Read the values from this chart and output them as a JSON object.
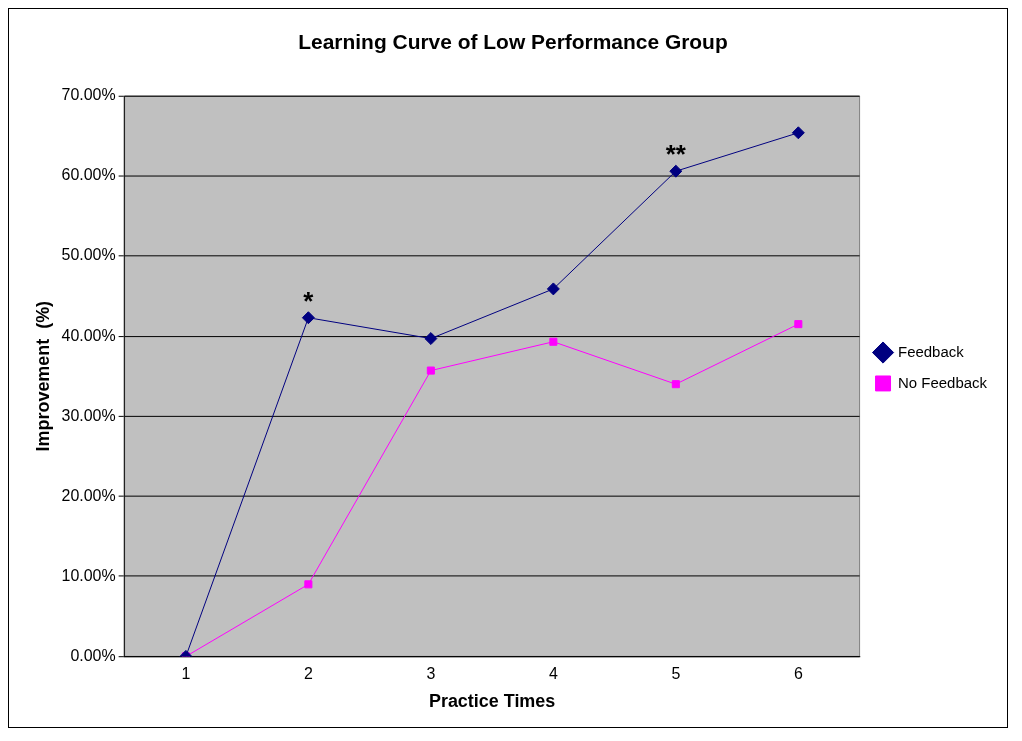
{
  "chart_data": {
    "type": "line",
    "title": "Learning Curve of Low Performance Group",
    "xlabel": "Practice Times",
    "ylabel": "Improvement  (%)",
    "categories": [
      "1",
      "2",
      "3",
      "4",
      "5",
      "6"
    ],
    "series": [
      {
        "name": "Feedback",
        "color": "#000080",
        "marker": "diamond",
        "values": [
          0,
          42.3,
          39.7,
          45.9,
          60.6,
          65.4
        ]
      },
      {
        "name": "No Feedback",
        "color": "#ff00ff",
        "marker": "square",
        "values": [
          0,
          9.0,
          35.7,
          39.3,
          34.0,
          41.5
        ]
      }
    ],
    "ylim": [
      0,
      70
    ],
    "yticks": [
      {
        "value": 0,
        "label": "0.00%"
      },
      {
        "value": 10,
        "label": "10.00%"
      },
      {
        "value": 20,
        "label": "20.00%"
      },
      {
        "value": 30,
        "label": "30.00%"
      },
      {
        "value": 40,
        "label": "40.00%"
      },
      {
        "value": 50,
        "label": "50.00%"
      },
      {
        "value": 60,
        "label": "60.00%"
      },
      {
        "value": 70,
        "label": "70.00%"
      }
    ],
    "grid": "y",
    "legend": "right",
    "line_style": "solid",
    "annotations": [
      {
        "text": "*",
        "x": "2",
        "y": 42.3
      },
      {
        "text": "**",
        "x": "5",
        "y": 60.6
      }
    ]
  }
}
